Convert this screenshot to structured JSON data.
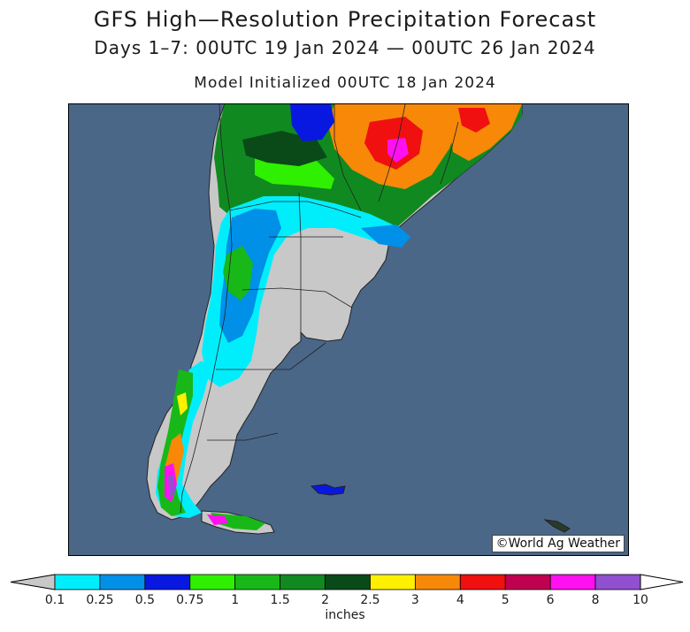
{
  "header": {
    "title": "GFS High—Resolution Precipitation Forecast",
    "period": "Days 1–7: 00UTC 19 Jan 2024 — 00UTC 26 Jan 2024",
    "initialized": "Model Initialized 00UTC 18 Jan 2024"
  },
  "map": {
    "region": "southern South America",
    "credit": "©World Ag Weather",
    "ocean_color": "#4a6788",
    "land_dry_color": "#c8c8c8",
    "border_color": "#222222"
  },
  "legend": {
    "units": "inches",
    "labels": [
      "0.1",
      "0.25",
      "0.5",
      "0.75",
      "1",
      "1.5",
      "2",
      "2.5",
      "3",
      "4",
      "5",
      "6",
      "8",
      "10"
    ],
    "colors": [
      {
        "range": "0.1-0.25",
        "hex": "#00eefc"
      },
      {
        "range": "0.25-0.5",
        "hex": "#0090e8"
      },
      {
        "range": "0.5-0.75",
        "hex": "#0818e0"
      },
      {
        "range": "0.75-1",
        "hex": "#2ef000"
      },
      {
        "range": "1-1.5",
        "hex": "#18b818"
      },
      {
        "range": "1.5-2",
        "hex": "#108a20"
      },
      {
        "range": "2-2.5",
        "hex": "#0a4a18"
      },
      {
        "range": "2.5-3",
        "hex": "#fff000"
      },
      {
        "range": "3-4",
        "hex": "#f88808"
      },
      {
        "range": "4-5",
        "hex": "#f01010"
      },
      {
        "range": "5-6",
        "hex": "#c00050"
      },
      {
        "range": "6-8",
        "hex": "#ff10f0"
      },
      {
        "range": "8-10",
        "hex": "#9050d0"
      }
    ],
    "below_color": "#c8c8c8",
    "above_color": "#ffffff"
  }
}
